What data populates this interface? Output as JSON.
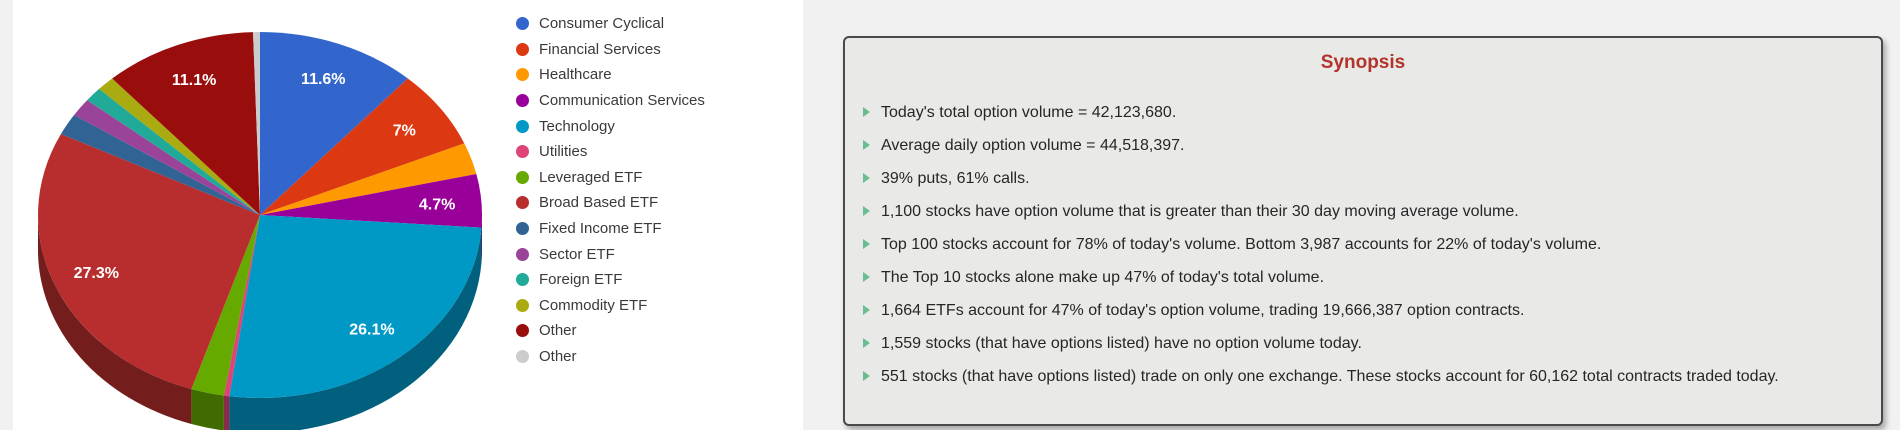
{
  "page": {
    "background_color": "#f1f1f1",
    "card_background_color": "#ffffff"
  },
  "chart_data": {
    "type": "pie",
    "is3d": true,
    "legend_position": "right",
    "slices": [
      {
        "label": "Consumer Cyclical",
        "value": 11.6,
        "display_label": "11.6%",
        "color": "#3366cc"
      },
      {
        "label": "Financial Services",
        "value": 7.0,
        "display_label": "7%",
        "color": "#dc3912"
      },
      {
        "label": "Healthcare",
        "value": 2.8,
        "display_label": "",
        "color": "#ff9900"
      },
      {
        "label": "Communication Services",
        "value": 4.7,
        "display_label": "4.7%",
        "color": "#990099"
      },
      {
        "label": "Technology",
        "value": 26.1,
        "display_label": "26.1%",
        "color": "#0099c6"
      },
      {
        "label": "Utilities",
        "value": 0.4,
        "display_label": "",
        "color": "#dd4477"
      },
      {
        "label": "Leveraged ETF",
        "value": 2.4,
        "display_label": "",
        "color": "#66aa00"
      },
      {
        "label": "Broad Based ETF",
        "value": 27.3,
        "display_label": "27.3%",
        "color": "#b82e2e"
      },
      {
        "label": "Fixed Income ETF",
        "value": 1.9,
        "display_label": "",
        "color": "#316395"
      },
      {
        "label": "Sector ETF",
        "value": 1.6,
        "display_label": "",
        "color": "#994499"
      },
      {
        "label": "Foreign ETF",
        "value": 1.3,
        "display_label": "",
        "color": "#22aa99"
      },
      {
        "label": "Commodity ETF",
        "value": 1.3,
        "display_label": "",
        "color": "#aaaa11"
      },
      {
        "label": "Other",
        "value": 11.1,
        "display_label": "11.1%",
        "color": "#9a0d0d"
      },
      {
        "label": "Other",
        "value": 0.5,
        "display_label": "",
        "color": "#cccccc"
      }
    ]
  },
  "synopsis": {
    "title": "Synopsis",
    "title_color": "#b3332b",
    "bullet_color": "#6abd91",
    "bullets": [
      "Today's total option volume = 42,123,680.",
      "Average daily option volume = 44,518,397.",
      "39% puts, 61% calls.",
      "1,100 stocks have option volume that is greater than their 30 day moving average volume.",
      "Top 100 stocks account for 78% of today's volume. Bottom 3,987 accounts for 22% of today's volume.",
      "The Top 10 stocks alone make up 47% of today's total volume.",
      "1,664 ETFs account for 47% of today's option volume, trading 19,666,387 option contracts.",
      "1,559 stocks (that have options listed) have no option volume today.",
      "551 stocks (that have options listed) trade on only one exchange. These stocks account for 60,162 total contracts traded today."
    ]
  }
}
